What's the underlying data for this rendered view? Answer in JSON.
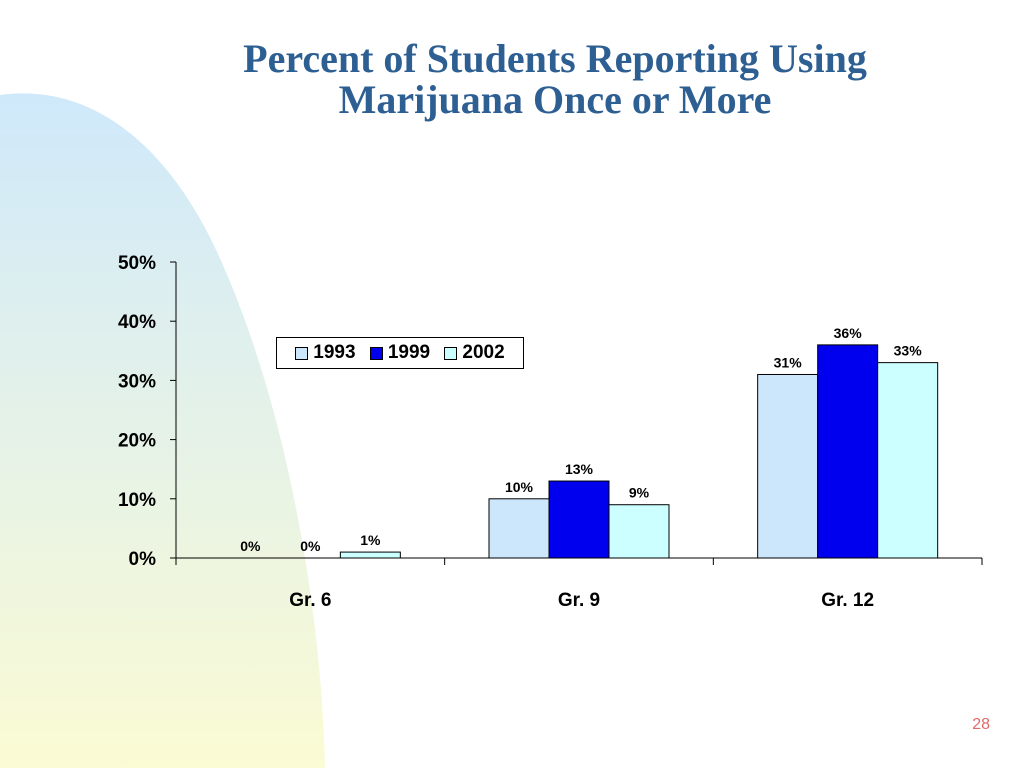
{
  "slide": {
    "title": "Percent of Students Reporting Using Marijuana Once or More",
    "page_number": "28",
    "colors": {
      "title": "#2e5f93",
      "page_number": "#e06a6a",
      "background_gradient_top": "#cfe9fb",
      "background_gradient_bottom": "#fbfbd4"
    }
  },
  "chart_data": {
    "type": "bar",
    "categories": [
      "Gr. 6",
      "Gr. 9",
      "Gr. 12"
    ],
    "series": [
      {
        "name": "1993",
        "values": [
          0,
          10,
          31
        ],
        "labels": [
          "0%",
          "10%",
          "31%"
        ],
        "color": "#cce6fb"
      },
      {
        "name": "1999",
        "values": [
          0,
          13,
          36
        ],
        "labels": [
          "0%",
          "13%",
          "36%"
        ],
        "color": "#0000ee"
      },
      {
        "name": "2002",
        "values": [
          1,
          9,
          33
        ],
        "labels": [
          "1%",
          "9%",
          "33%"
        ],
        "color": "#ccffff"
      }
    ],
    "ylim": [
      0,
      50
    ],
    "yticks": [
      0,
      10,
      20,
      30,
      40,
      50
    ],
    "ytick_labels": [
      "0%",
      "10%",
      "20%",
      "30%",
      "40%",
      "50%"
    ],
    "grid": false,
    "legend_position": "top-left, inside plot"
  }
}
